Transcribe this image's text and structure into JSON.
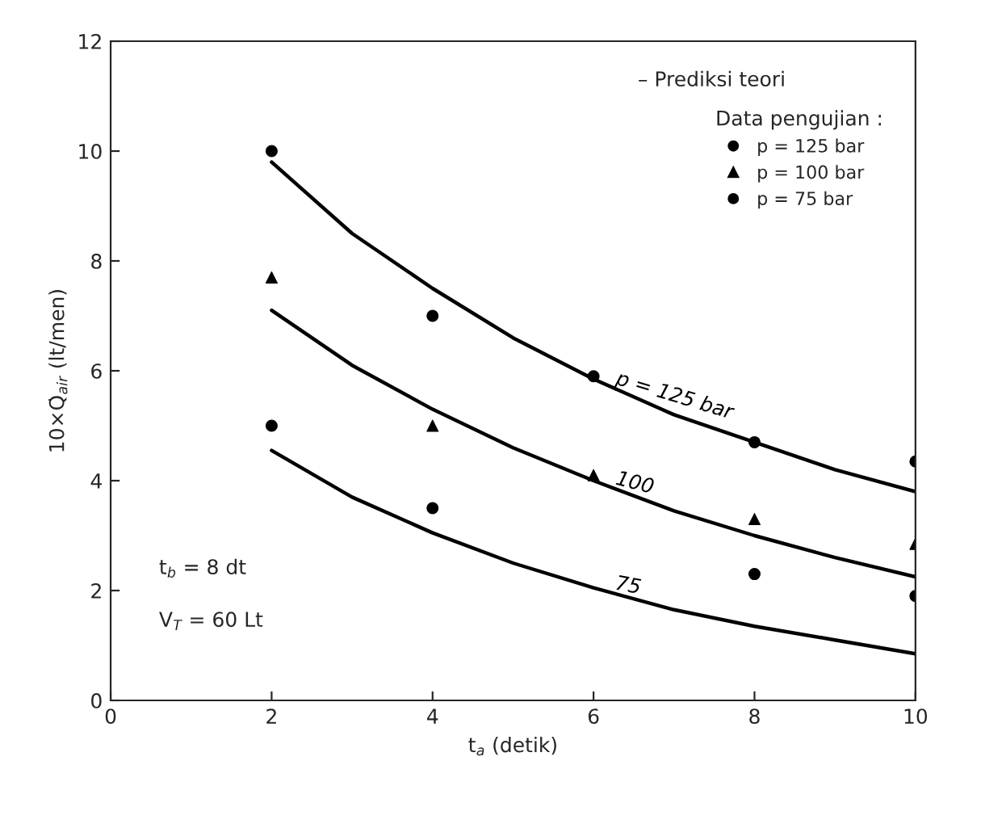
{
  "chart_data": {
    "type": "line",
    "xlabel": "t$_{a}$ (detik)",
    "ylabel": "10×Q̇$_{air}$ (lt/men)",
    "legend_title": "Data pengujian :",
    "xlim": [
      0,
      10
    ],
    "ylim": [
      0,
      12
    ],
    "xticks": [
      0,
      2,
      4,
      6,
      8,
      10
    ],
    "yticks": [
      0,
      2,
      4,
      6,
      8,
      10,
      12
    ],
    "legend": "top right",
    "series": [
      {
        "name": "p = 125 bar",
        "type": "scatter",
        "marker": "circle",
        "color": "#000000",
        "x": [
          2,
          4,
          6,
          8,
          10
        ],
        "values": [
          10.0,
          7.0,
          5.9,
          4.7,
          4.35
        ]
      },
      {
        "name": "p = 100 bar",
        "type": "scatter",
        "marker": "triangle",
        "color": "#000000",
        "x": [
          2,
          4,
          6,
          8,
          10
        ],
        "values": [
          7.7,
          5.0,
          4.1,
          3.3,
          2.85
        ]
      },
      {
        "name": "p = 75 bar",
        "type": "scatter",
        "marker": "circle",
        "color": "#000000",
        "x": [
          2,
          4,
          6,
          8,
          10
        ],
        "values": [
          5.0,
          3.5,
          null,
          2.3,
          1.9
        ]
      },
      {
        "name": "p = 125 bar",
        "color": "#000000",
        "x": [
          2,
          3,
          4,
          5,
          6,
          7,
          8,
          9,
          10
        ],
        "values": [
          9.8,
          8.5,
          7.5,
          6.6,
          5.85,
          5.2,
          4.7,
          4.2,
          3.8
        ]
      },
      {
        "name": "100",
        "color": "#000000",
        "x": [
          2,
          3,
          4,
          5,
          6,
          7,
          8,
          9,
          10
        ],
        "values": [
          7.1,
          6.1,
          5.3,
          4.6,
          4.0,
          3.45,
          3.0,
          2.6,
          2.25
        ]
      },
      {
        "name": "75",
        "color": "#000000",
        "x": [
          2,
          3,
          4,
          5,
          6,
          7,
          8,
          9,
          10
        ],
        "values": [
          4.55,
          3.7,
          3.05,
          2.5,
          2.05,
          1.65,
          1.35,
          1.1,
          0.85
        ]
      }
    ],
    "annotations": [
      "– Prediksi teori",
      "t$_{b}$ = 8 dt",
      "V$_{T}$ = 60 Lt"
    ]
  }
}
